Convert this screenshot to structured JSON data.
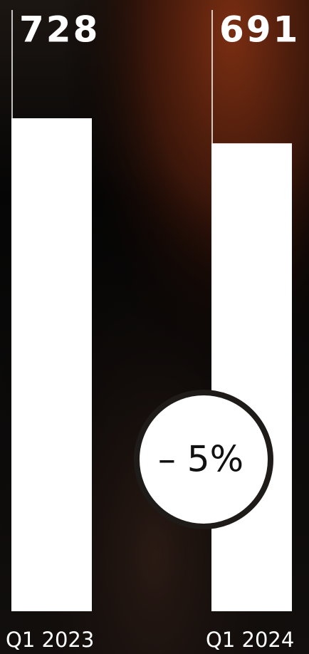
{
  "chart_data": {
    "type": "bar",
    "categories": [
      "Q1 2023",
      "Q1 2024"
    ],
    "values": [
      728,
      691
    ],
    "color": "#ffffff",
    "annotation": "– 5%"
  }
}
